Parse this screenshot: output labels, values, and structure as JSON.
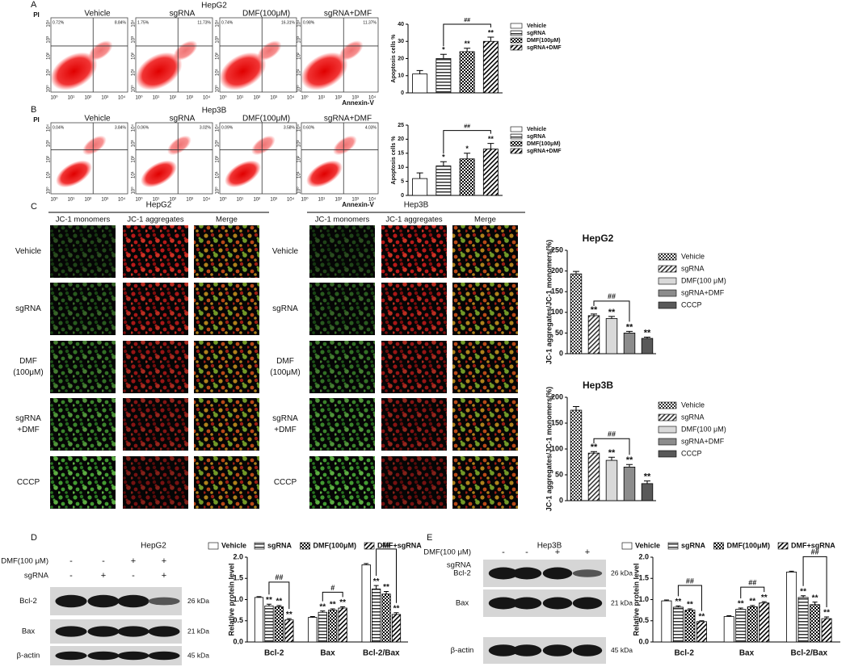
{
  "chart_data": [
    {
      "type": "bar",
      "ylabel": "Apoptosis cells %",
      "categories": [
        "Vehicle",
        "sgRNA",
        "DMF(100μM)",
        "sgRNA+DMF"
      ],
      "values": [
        11,
        20,
        24,
        30
      ],
      "errors": [
        2,
        2.5,
        2,
        2.5
      ],
      "significance": [
        null,
        "*",
        "**",
        "**"
      ],
      "bracket": {
        "label": "##",
        "from": "sgRNA",
        "to": "sgRNA+DMF"
      },
      "color": "#000000",
      "patterns": [
        "none",
        "horizontal",
        "checker",
        "diagonal"
      ],
      "ylim": [
        0,
        40
      ],
      "yticks": [
        0,
        10,
        20,
        30,
        40
      ],
      "legend": "right"
    },
    {
      "type": "bar",
      "ylabel": "Apoptosis cells %",
      "categories": [
        "Vehicle",
        "sgRNA",
        "DMF(100μM)",
        "sgRNA+DMF"
      ],
      "values": [
        6,
        10.5,
        13,
        16.5
      ],
      "errors": [
        2,
        1.5,
        2,
        2
      ],
      "significance": [
        null,
        "*",
        "*",
        "**"
      ],
      "bracket": {
        "label": "##",
        "from": "sgRNA",
        "to": "sgRNA+DMF"
      },
      "color": "#000000",
      "patterns": [
        "none",
        "horizontal",
        "checker",
        "diagonal"
      ],
      "ylim": [
        0,
        25
      ],
      "yticks": [
        0,
        5,
        10,
        15,
        20,
        25
      ],
      "legend": "right"
    },
    {
      "type": "bar",
      "title": "HepG2",
      "ylabel": "JC-1 aggregates/JC-1 monomers(%)",
      "categories": [
        "Vehicle",
        "sgRNA",
        "DMF(100 μM)",
        "sgRNA+DMF",
        "CCCP"
      ],
      "values": [
        193,
        92,
        85,
        50,
        37
      ],
      "errors": [
        6,
        4,
        5,
        4,
        3
      ],
      "significance": [
        null,
        "**",
        "**",
        "**",
        "**"
      ],
      "bracket": {
        "label": "##",
        "from": "sgRNA",
        "to": "sgRNA+DMF"
      },
      "colors": [
        "#333333",
        "#333333",
        "#d9d9d9",
        "#8c8c8c",
        "#595959"
      ],
      "patterns": [
        "checker",
        "diagonal",
        "solid",
        "solid",
        "solid"
      ],
      "ylim": [
        0,
        250
      ],
      "yticks": [
        0,
        50,
        100,
        150,
        200,
        250
      ],
      "legend": "right"
    },
    {
      "type": "bar",
      "title": "Hep3B",
      "ylabel": "JC-1 aggregates/JC-1 monomers(%)",
      "categories": [
        "Vehicle",
        "sgRNA",
        "DMF(100 μM)",
        "sgRNA+DMF",
        "CCCP"
      ],
      "values": [
        175,
        92,
        78,
        65,
        33
      ],
      "errors": [
        7,
        3,
        6,
        5,
        5
      ],
      "significance": [
        null,
        "**",
        "**",
        "**",
        "**"
      ],
      "bracket": {
        "label": "##",
        "from": "sgRNA",
        "to": "sgRNA+DMF"
      },
      "colors": [
        "#333333",
        "#333333",
        "#d9d9d9",
        "#8c8c8c",
        "#595959"
      ],
      "patterns": [
        "checker",
        "diagonal",
        "solid",
        "solid",
        "solid"
      ],
      "ylim": [
        0,
        200
      ],
      "yticks": [
        0,
        50,
        100,
        150,
        200
      ],
      "legend": "right"
    },
    {
      "type": "bar",
      "ylabel": "Relative protein level",
      "categories": [
        "Bcl-2",
        "Bax",
        "Bcl-2/Bax"
      ],
      "series": [
        {
          "name": "Vehicle",
          "color": "#000000",
          "pattern": "none",
          "values": [
            1.05,
            0.58,
            1.82
          ],
          "errors": [
            0.02,
            0.02,
            0.03
          ]
        },
        {
          "name": "sgRNA",
          "color": "#000000",
          "pattern": "horizontal",
          "values": [
            0.85,
            0.7,
            1.25
          ],
          "errors": [
            0.04,
            0.03,
            0.08
          ],
          "significance": [
            "**",
            "**",
            "**"
          ]
        },
        {
          "name": "DMF(100μM)",
          "color": "#000000",
          "pattern": "checker",
          "values": [
            0.83,
            0.75,
            1.13
          ],
          "errors": [
            0.03,
            0.03,
            0.06
          ],
          "significance": [
            "**",
            "**",
            "**"
          ]
        },
        {
          "name": "DMF+sgRNA",
          "color": "#000000",
          "pattern": "diagonal",
          "values": [
            0.52,
            0.8,
            0.65
          ],
          "errors": [
            0.03,
            0.03,
            0.04
          ],
          "significance": [
            "**",
            "**",
            "**"
          ]
        }
      ],
      "brackets": [
        {
          "category": "Bcl-2",
          "label": "##",
          "from": "sgRNA",
          "to": "DMF+sgRNA"
        },
        {
          "category": "Bax",
          "label": "#",
          "from": "sgRNA",
          "to": "DMF+sgRNA"
        },
        {
          "category": "Bcl-2/Bax",
          "label": "##",
          "from": "sgRNA",
          "to": "DMF+sgRNA"
        }
      ],
      "ylim": [
        0,
        2
      ],
      "yticks": [
        {
          "value": 0,
          "label": "0.0"
        },
        0.5,
        {
          "value": 1,
          "label": "1.0"
        },
        1.5,
        {
          "value": 2,
          "label": "2.0"
        }
      ],
      "legend": "top"
    },
    {
      "type": "bar",
      "ylabel": "Relative protein level",
      "categories": [
        "Bcl-2",
        "Bax",
        "Bcl-2/Bax"
      ],
      "series": [
        {
          "name": "Vehicle",
          "color": "#000000",
          "pattern": "none",
          "values": [
            0.97,
            0.6,
            1.65
          ],
          "errors": [
            0.02,
            0.02,
            0.02
          ]
        },
        {
          "name": "sgRNA",
          "color": "#000000",
          "pattern": "horizontal",
          "values": [
            0.82,
            0.77,
            1.05
          ],
          "errors": [
            0.03,
            0.03,
            0.04
          ],
          "significance": [
            "**",
            "**",
            "**"
          ]
        },
        {
          "name": "DMF(100μM)",
          "color": "#000000",
          "pattern": "checker",
          "values": [
            0.75,
            0.83,
            0.88
          ],
          "errors": [
            0.03,
            0.03,
            0.06
          ],
          "significance": [
            "**",
            "**",
            "**"
          ]
        },
        {
          "name": "DMF+sgRNA",
          "color": "#000000",
          "pattern": "diagonal",
          "values": [
            0.48,
            0.92,
            0.55
          ],
          "errors": [
            0.02,
            0.03,
            0.04
          ],
          "significance": [
            "**",
            "**",
            "**"
          ]
        }
      ],
      "brackets": [
        {
          "category": "Bcl-2",
          "label": "##",
          "from": "sgRNA",
          "to": "DMF+sgRNA"
        },
        {
          "category": "Bax",
          "label": "##",
          "from": "sgRNA",
          "to": "DMF+sgRNA"
        },
        {
          "category": "Bcl-2/Bax",
          "label": "##",
          "from": "sgRNA",
          "to": "DMF+sgRNA"
        }
      ],
      "ylim": [
        0,
        2
      ],
      "yticks": [
        {
          "value": 0,
          "label": "0.0"
        },
        0.5,
        {
          "value": 1,
          "label": "1.0"
        },
        1.5,
        {
          "value": 2,
          "label": "2.0"
        }
      ],
      "legend": "top"
    }
  ],
  "figure": {
    "flow": [
      {
        "panel": "A",
        "cell_line": "HepG2",
        "y_axis": "PI",
        "x_axis": "Annexin-V",
        "conditions": [
          "Vehicle",
          "sgRNA",
          "DMF(100μM)",
          "sgRNA+DMF"
        ],
        "quadrants": [
          [
            "0.72%",
            "8.84%"
          ],
          [
            "1.75%",
            "11.73%"
          ],
          [
            "0.74%",
            "16.31%"
          ],
          [
            "0.98%",
            "11.37%"
          ]
        ]
      },
      {
        "panel": "B",
        "cell_line": "Hep3B",
        "y_axis": "PI",
        "x_axis": "Annexin-V",
        "conditions": [
          "Vehicle",
          "sgRNA",
          "DMF(100μM)",
          "sgRNA+DMF"
        ],
        "quadrants": [
          [
            "0.04%",
            "3.84%"
          ],
          [
            "0.06%",
            "3.02%"
          ],
          [
            "0.09%",
            "3.58%"
          ],
          [
            "0.60%",
            "4.03%"
          ]
        ]
      }
    ],
    "log_ticks": [
      "10⁰",
      "10¹",
      "10²",
      "10³",
      "10⁴"
    ],
    "jc1": {
      "panel": "C",
      "columns": [
        "JC-1 monomers",
        "JC-1 aggregates",
        "Merge"
      ],
      "groups": [
        {
          "cell_line": "HepG2",
          "rows": [
            [
              "Vehicle"
            ],
            [
              "sgRNA"
            ],
            [
              "DMF",
              "(100μM)"
            ],
            [
              "sgRNA",
              "+DMF"
            ],
            [
              "CCCP"
            ]
          ]
        },
        {
          "cell_line": "Hep3B",
          "rows": [
            [
              "Vehicle"
            ],
            [
              "sgRNA"
            ],
            [
              "DMF",
              "(100μM)"
            ],
            [
              "sgRNA",
              "+DMF"
            ],
            [
              "CCCP"
            ]
          ]
        }
      ]
    },
    "blots": [
      {
        "panel": "D",
        "cell_line": "HepG2",
        "treatments": [
          {
            "name": "DMF(100 μM)",
            "signs": [
              "-",
              "-",
              "+",
              "+"
            ]
          },
          {
            "name": "sgRNA",
            "signs": [
              "-",
              "+",
              "-",
              "+"
            ]
          }
        ],
        "proteins": [
          {
            "name": "Bcl-2",
            "size": "26 kDa"
          },
          {
            "name": "Bax",
            "size": "21 kDa"
          },
          {
            "name": "β-actin",
            "size": "45 kDa"
          }
        ]
      },
      {
        "panel": "E",
        "cell_line": "Hep3B",
        "treatments": [
          {
            "name": "DMF(100 μM)",
            "signs": [
              "-",
              "-",
              "+",
              "+"
            ]
          },
          {
            "name": "sgRNA",
            "signs": [
              "-",
              "+",
              "-",
              "+"
            ]
          }
        ],
        "proteins": [
          {
            "name": "Bcl-2",
            "size": "26 kDa"
          },
          {
            "name": "Bax",
            "size": "21 kDa"
          },
          {
            "name": "β-actin",
            "size": "45 kDa"
          }
        ]
      }
    ]
  }
}
